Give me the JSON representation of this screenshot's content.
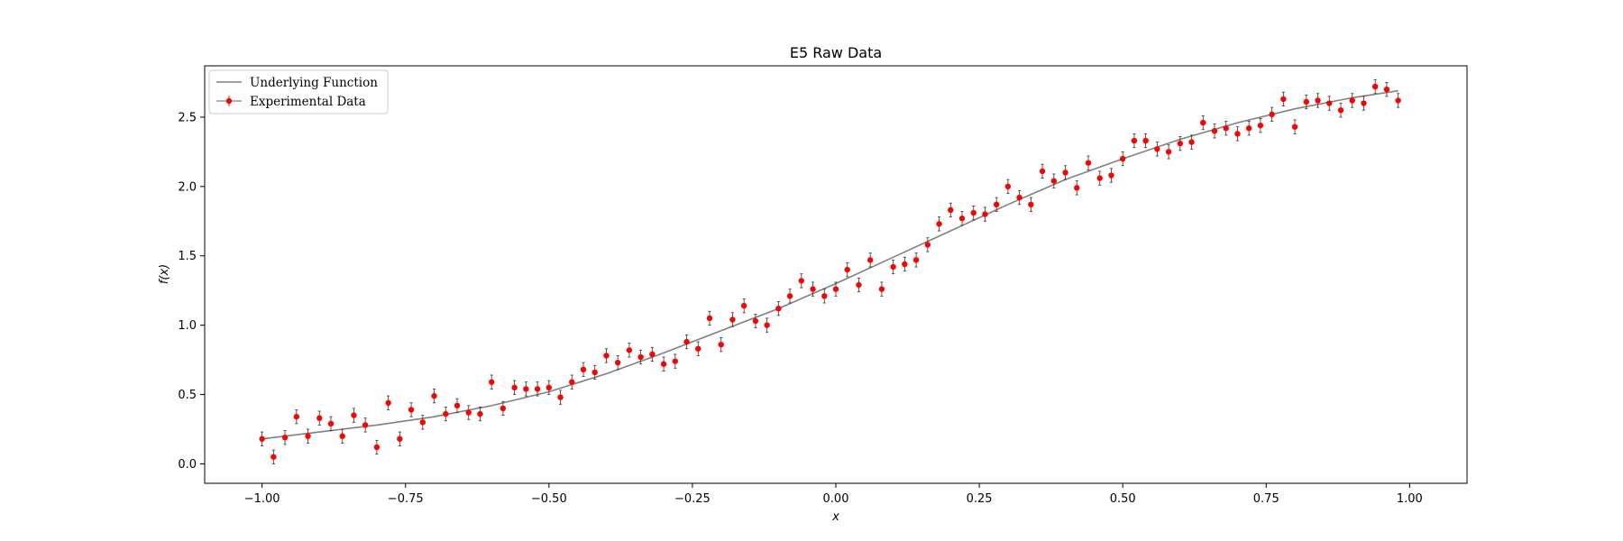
{
  "chart_data": {
    "type": "scatter",
    "title": "E5 Raw Data",
    "xlabel": "x",
    "ylabel": "f(x)",
    "xlim": [
      -1.1,
      1.1
    ],
    "ylim": [
      -0.14,
      2.87
    ],
    "xticks": [
      -1.0,
      -0.75,
      -0.5,
      -0.25,
      0.0,
      0.25,
      0.5,
      0.75,
      1.0
    ],
    "xtick_labels": [
      "−1.00",
      "−0.75",
      "−0.50",
      "−0.25",
      "0.00",
      "0.25",
      "0.50",
      "0.75",
      "1.00"
    ],
    "yticks": [
      0.0,
      0.5,
      1.0,
      1.5,
      2.0,
      2.5
    ],
    "ytick_labels": [
      "0.0",
      "0.5",
      "1.0",
      "1.5",
      "2.0",
      "2.5"
    ],
    "legend_position": "top-left",
    "grid": false,
    "series": [
      {
        "name": "Underlying Function",
        "type": "line",
        "color": "#808080",
        "x": [
          -1.0,
          -0.9,
          -0.8,
          -0.7,
          -0.6,
          -0.5,
          -0.4,
          -0.3,
          -0.2,
          -0.1,
          0.0,
          0.1,
          0.2,
          0.3,
          0.4,
          0.5,
          0.6,
          0.7,
          0.8,
          0.9,
          0.98
        ],
        "y": [
          0.18,
          0.23,
          0.28,
          0.34,
          0.42,
          0.52,
          0.65,
          0.8,
          0.96,
          1.12,
          1.3,
          1.49,
          1.68,
          1.87,
          2.05,
          2.2,
          2.34,
          2.46,
          2.56,
          2.64,
          2.69
        ]
      },
      {
        "name": "Experimental Data",
        "type": "errorbar",
        "color": "#ff0000",
        "yerr": 0.05,
        "x": [
          -1.0,
          -0.98,
          -0.96,
          -0.94,
          -0.92,
          -0.9,
          -0.88,
          -0.86,
          -0.84,
          -0.82,
          -0.8,
          -0.78,
          -0.76,
          -0.74,
          -0.72,
          -0.7,
          -0.68,
          -0.66,
          -0.64,
          -0.62,
          -0.6,
          -0.58,
          -0.56,
          -0.54,
          -0.52,
          -0.5,
          -0.48,
          -0.46,
          -0.44,
          -0.42,
          -0.4,
          -0.38,
          -0.36,
          -0.34,
          -0.32,
          -0.3,
          -0.28,
          -0.26,
          -0.24,
          -0.22,
          -0.2,
          -0.18,
          -0.16,
          -0.14,
          -0.12,
          -0.1,
          -0.08,
          -0.06,
          -0.04,
          -0.02,
          0.0,
          0.02,
          0.04,
          0.06,
          0.08,
          0.1,
          0.12,
          0.14,
          0.16,
          0.18,
          0.2,
          0.22,
          0.24,
          0.26,
          0.28,
          0.3,
          0.32,
          0.34,
          0.36,
          0.38,
          0.4,
          0.42,
          0.44,
          0.46,
          0.48,
          0.5,
          0.52,
          0.54,
          0.56,
          0.58,
          0.6,
          0.62,
          0.64,
          0.66,
          0.68,
          0.7,
          0.72,
          0.74,
          0.76,
          0.78,
          0.8,
          0.82,
          0.84,
          0.86,
          0.88,
          0.9,
          0.92,
          0.94,
          0.96,
          0.98
        ],
        "y": [
          0.18,
          0.05,
          0.19,
          0.34,
          0.2,
          0.33,
          0.29,
          0.2,
          0.35,
          0.28,
          0.12,
          0.44,
          0.18,
          0.39,
          0.3,
          0.49,
          0.36,
          0.42,
          0.37,
          0.36,
          0.59,
          0.4,
          0.55,
          0.54,
          0.54,
          0.55,
          0.48,
          0.59,
          0.68,
          0.66,
          0.78,
          0.73,
          0.82,
          0.77,
          0.79,
          0.72,
          0.74,
          0.88,
          0.83,
          1.05,
          0.86,
          1.04,
          1.14,
          1.03,
          1.0,
          1.12,
          1.21,
          1.32,
          1.26,
          1.21,
          1.26,
          1.4,
          1.29,
          1.47,
          1.26,
          1.42,
          1.44,
          1.47,
          1.58,
          1.73,
          1.83,
          1.77,
          1.81,
          1.8,
          1.87,
          2.0,
          1.92,
          1.87,
          2.11,
          2.04,
          2.1,
          1.99,
          2.17,
          2.06,
          2.08,
          2.2,
          2.33,
          2.33,
          2.27,
          2.25,
          2.31,
          2.32,
          2.46,
          2.4,
          2.42,
          2.38,
          2.42,
          2.44,
          2.52,
          2.63,
          2.43,
          2.61,
          2.62,
          2.6,
          2.55,
          2.62,
          2.6,
          2.72,
          2.7,
          2.62
        ]
      }
    ]
  }
}
